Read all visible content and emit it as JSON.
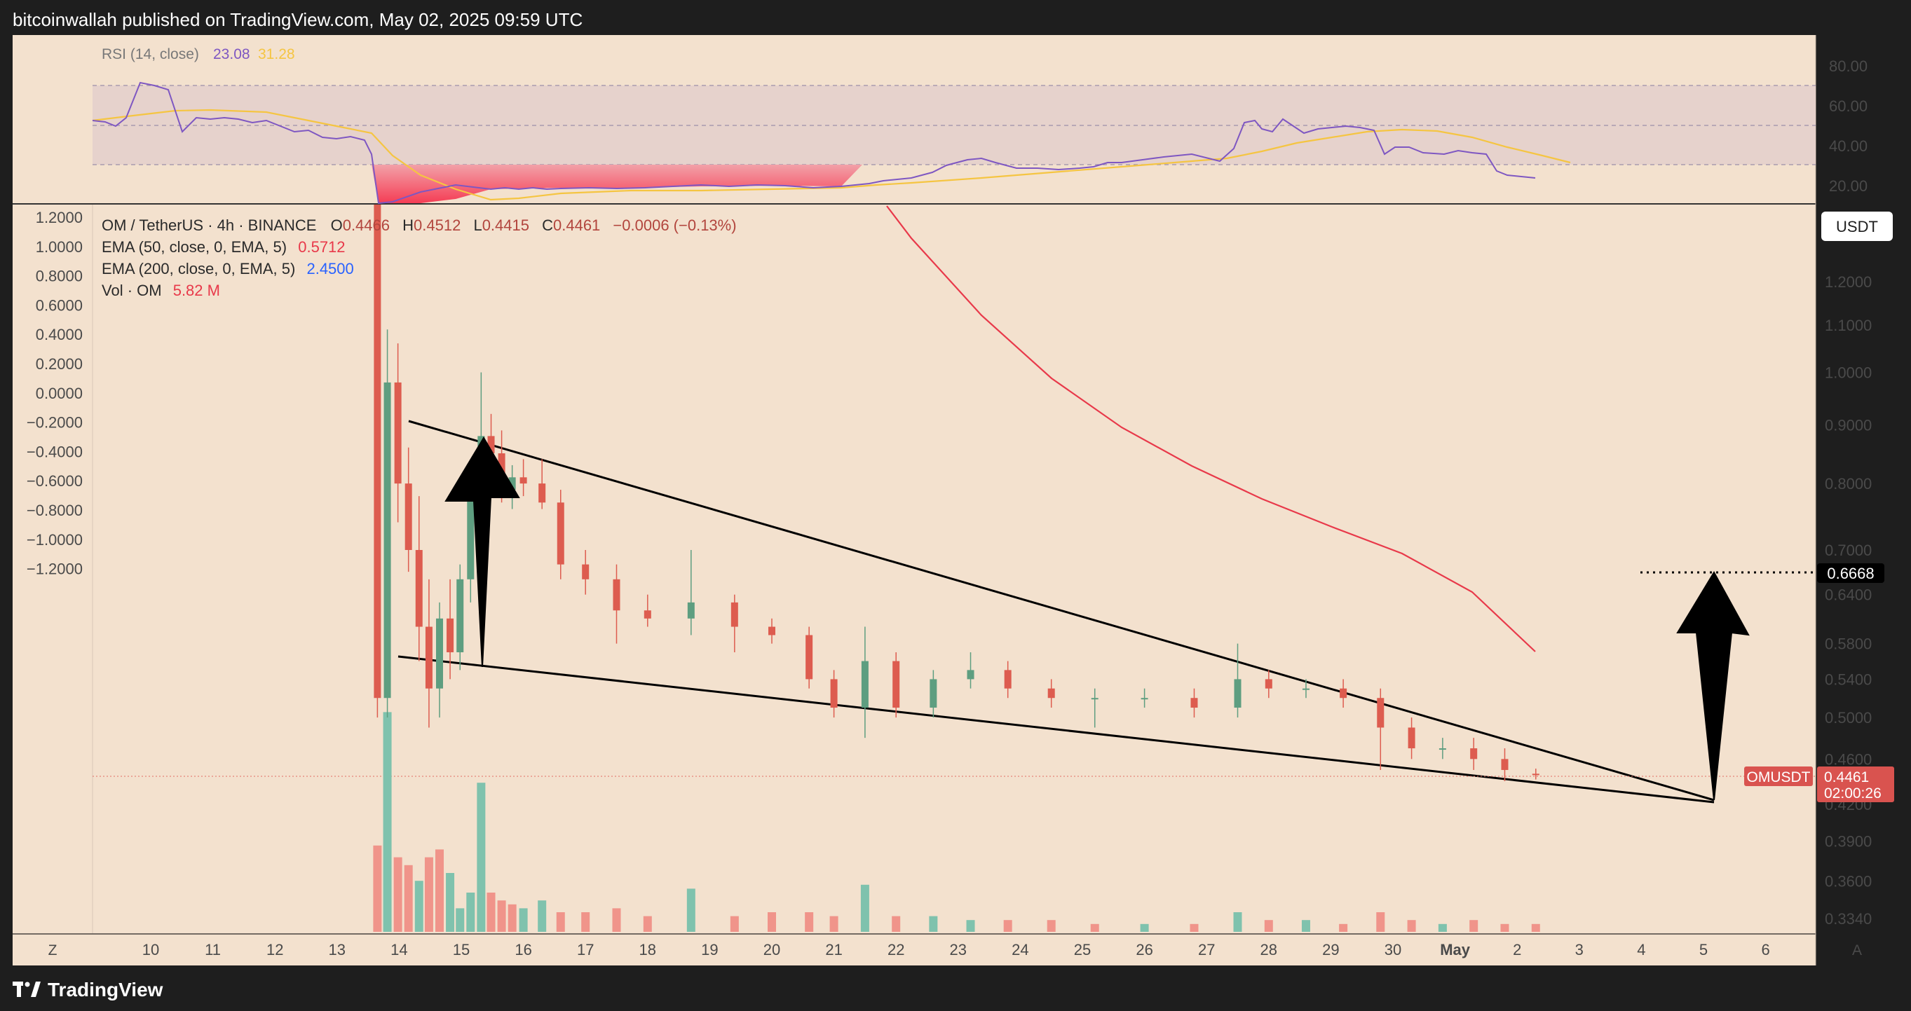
{
  "header": {
    "publish_text": "bitcoinwallah published on TradingView.com, May 02, 2025 09:59 UTC"
  },
  "footer": {
    "brand": "TradingView"
  },
  "colors": {
    "background": "#f3e1ce",
    "frame": "#1e1e1e",
    "bull": "#5e9e80",
    "bear": "#dd5c4f",
    "ema50": "#e8394a",
    "ema200": "#2962ff",
    "rsi": "#7e57c2",
    "rsi_ma": "#f5c542",
    "vol_bull": "#7fc2ad",
    "vol_bear": "#f0948a",
    "price_tag": "#d9534f"
  },
  "rsi_panel": {
    "title": "RSI (14, close)",
    "rsi_value": "23.08",
    "ma_value": "31.28",
    "scale_labels": [
      "80.00",
      "60.00",
      "40.00",
      "20.00"
    ]
  },
  "legend": {
    "symbol": "OM / TetherUS · 4h · BINANCE",
    "open_label": "O",
    "open": "0.4466",
    "high_label": "H",
    "high": "0.4512",
    "low_label": "L",
    "low": "0.4415",
    "close_label": "C",
    "close": "0.4461",
    "change": "−0.0006 (−0.13%)",
    "ema50_label": "EMA (50, close, 0, EMA, 5)",
    "ema50_value": "0.5712",
    "ema200_label": "EMA (200, close, 0, EMA, 5)",
    "ema200_value": "2.4500",
    "vol_label": "Vol · OM",
    "vol_value": "5.82 M"
  },
  "axes": {
    "left_labels": [
      "1.2000",
      "1.0000",
      "0.8000",
      "0.6000",
      "0.4000",
      "0.2000",
      "0.0000",
      "−0.2000",
      "−0.4000",
      "−0.6000",
      "−0.8000",
      "−1.0000",
      "−1.2000"
    ],
    "right_labels": [
      "1.2000",
      "1.1000",
      "1.0000",
      "0.9000",
      "0.8000",
      "0.7000",
      "0.6400",
      "0.5800",
      "0.5400",
      "0.5000",
      "0.4600",
      "0.4200",
      "0.3900",
      "0.3600",
      "0.3340"
    ],
    "currency": "USDT",
    "target_tag": "0.6668",
    "price_tag_symbol": "OMUSDT",
    "price_tag_value": "0.4461",
    "price_tag_countdown": "02:00:26",
    "z_button": "Z",
    "a_button": "A",
    "x_labels": [
      "10",
      "11",
      "12",
      "13",
      "14",
      "15",
      "16",
      "17",
      "18",
      "19",
      "20",
      "21",
      "22",
      "23",
      "24",
      "25",
      "26",
      "27",
      "28",
      "29",
      "30",
      "May",
      "2",
      "3",
      "4",
      "5",
      "6"
    ]
  },
  "chart_data": {
    "type": "candlestick",
    "symbol": "OM / TetherUS",
    "timeframe": "4h",
    "exchange": "BINANCE",
    "x_axis": [
      "10",
      "11",
      "12",
      "13",
      "14",
      "15",
      "16",
      "17",
      "18",
      "19",
      "20",
      "21",
      "22",
      "23",
      "24",
      "25",
      "26",
      "27",
      "28",
      "29",
      "30",
      "May",
      "2",
      "3",
      "4",
      "5",
      "6"
    ],
    "y_axis_scale": "log",
    "last_candle": {
      "open": 0.4466,
      "high": 0.4512,
      "low": 0.4415,
      "close": 0.4461,
      "change": -0.0006,
      "change_pct": -0.13
    },
    "candles_approx": [
      {
        "x": 13.65,
        "o": 6.3,
        "h": 6.3,
        "l": 0.5,
        "c": 0.52
      },
      {
        "x": 13.81,
        "o": 0.52,
        "h": 1.09,
        "l": 0.5,
        "c": 0.98
      },
      {
        "x": 13.98,
        "o": 0.98,
        "h": 1.06,
        "l": 0.74,
        "c": 0.8
      },
      {
        "x": 14.15,
        "o": 0.8,
        "h": 0.86,
        "l": 0.67,
        "c": 0.7
      },
      {
        "x": 14.32,
        "o": 0.7,
        "h": 0.78,
        "l": 0.56,
        "c": 0.6
      },
      {
        "x": 14.48,
        "o": 0.6,
        "h": 0.66,
        "l": 0.49,
        "c": 0.53
      },
      {
        "x": 14.65,
        "o": 0.53,
        "h": 0.63,
        "l": 0.5,
        "c": 0.61
      },
      {
        "x": 14.82,
        "o": 0.61,
        "h": 0.66,
        "l": 0.54,
        "c": 0.57
      },
      {
        "x": 14.98,
        "o": 0.57,
        "h": 0.68,
        "l": 0.55,
        "c": 0.66
      },
      {
        "x": 15.15,
        "o": 0.66,
        "h": 0.83,
        "l": 0.63,
        "c": 0.81
      },
      {
        "x": 15.32,
        "o": 0.81,
        "h": 1.0,
        "l": 0.79,
        "c": 0.88
      },
      {
        "x": 15.48,
        "o": 0.88,
        "h": 0.92,
        "l": 0.82,
        "c": 0.85
      },
      {
        "x": 15.65,
        "o": 0.85,
        "h": 0.89,
        "l": 0.77,
        "c": 0.79
      },
      {
        "x": 15.82,
        "o": 0.79,
        "h": 0.83,
        "l": 0.76,
        "c": 0.81
      },
      {
        "x": 16.0,
        "o": 0.81,
        "h": 0.84,
        "l": 0.78,
        "c": 0.8
      },
      {
        "x": 16.3,
        "o": 0.8,
        "h": 0.84,
        "l": 0.76,
        "c": 0.77
      },
      {
        "x": 16.6,
        "o": 0.77,
        "h": 0.79,
        "l": 0.66,
        "c": 0.68
      },
      {
        "x": 17.0,
        "o": 0.68,
        "h": 0.7,
        "l": 0.64,
        "c": 0.66
      },
      {
        "x": 17.5,
        "o": 0.66,
        "h": 0.68,
        "l": 0.58,
        "c": 0.62
      },
      {
        "x": 18.0,
        "o": 0.62,
        "h": 0.64,
        "l": 0.6,
        "c": 0.61
      },
      {
        "x": 18.7,
        "o": 0.61,
        "h": 0.7,
        "l": 0.59,
        "c": 0.63
      },
      {
        "x": 19.4,
        "o": 0.63,
        "h": 0.64,
        "l": 0.57,
        "c": 0.6
      },
      {
        "x": 20.0,
        "o": 0.6,
        "h": 0.61,
        "l": 0.58,
        "c": 0.59
      },
      {
        "x": 20.6,
        "o": 0.59,
        "h": 0.6,
        "l": 0.53,
        "c": 0.54
      },
      {
        "x": 21.0,
        "o": 0.54,
        "h": 0.55,
        "l": 0.5,
        "c": 0.51
      },
      {
        "x": 21.5,
        "o": 0.51,
        "h": 0.6,
        "l": 0.48,
        "c": 0.56
      },
      {
        "x": 22.0,
        "o": 0.56,
        "h": 0.57,
        "l": 0.5,
        "c": 0.51
      },
      {
        "x": 22.6,
        "o": 0.51,
        "h": 0.55,
        "l": 0.5,
        "c": 0.54
      },
      {
        "x": 23.2,
        "o": 0.54,
        "h": 0.57,
        "l": 0.53,
        "c": 0.55
      },
      {
        "x": 23.8,
        "o": 0.55,
        "h": 0.56,
        "l": 0.52,
        "c": 0.53
      },
      {
        "x": 24.5,
        "o": 0.53,
        "h": 0.54,
        "l": 0.51,
        "c": 0.52
      },
      {
        "x": 25.2,
        "o": 0.52,
        "h": 0.53,
        "l": 0.49,
        "c": 0.52
      },
      {
        "x": 26.0,
        "o": 0.52,
        "h": 0.53,
        "l": 0.51,
        "c": 0.52
      },
      {
        "x": 26.8,
        "o": 0.52,
        "h": 0.53,
        "l": 0.5,
        "c": 0.51
      },
      {
        "x": 27.5,
        "o": 0.51,
        "h": 0.58,
        "l": 0.5,
        "c": 0.54
      },
      {
        "x": 28.0,
        "o": 0.54,
        "h": 0.55,
        "l": 0.52,
        "c": 0.53
      },
      {
        "x": 28.6,
        "o": 0.53,
        "h": 0.54,
        "l": 0.52,
        "c": 0.53
      },
      {
        "x": 29.2,
        "o": 0.53,
        "h": 0.54,
        "l": 0.51,
        "c": 0.52
      },
      {
        "x": 29.8,
        "o": 0.52,
        "h": 0.53,
        "l": 0.45,
        "c": 0.49
      },
      {
        "x": 30.3,
        "o": 0.49,
        "h": 0.5,
        "l": 0.46,
        "c": 0.47
      },
      {
        "x": 30.8,
        "o": 0.47,
        "h": 0.48,
        "l": 0.46,
        "c": 0.47
      },
      {
        "x": 31.3,
        "o": 0.47,
        "h": 0.48,
        "l": 0.45,
        "c": 0.46
      },
      {
        "x": 31.8,
        "o": 0.46,
        "h": 0.47,
        "l": 0.44,
        "c": 0.45
      },
      {
        "x": 32.3,
        "o": 0.4466,
        "h": 0.4512,
        "l": 0.4415,
        "c": 0.4461
      }
    ],
    "annotations": {
      "target_price": 0.6668,
      "falling_wedge": true,
      "arrows": [
        "up",
        "up"
      ]
    }
  }
}
